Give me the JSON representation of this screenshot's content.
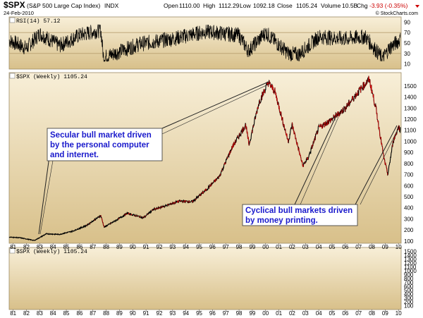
{
  "header": {
    "symbol": "$SPX",
    "description": "(S&P 500 Large Cap Index)",
    "exchange": "INDX",
    "date": "24-Feb-2010",
    "open_label": "Open",
    "open": "1110.00",
    "high_label": "High",
    "high": "1112.29",
    "low_label": "Low",
    "low": "1092.18",
    "close_label": "Close",
    "close": "1105.24",
    "volume_label": "Volume",
    "volume": "10.5B",
    "change_label": "Chg",
    "change": "-3.93 (-0.35%)",
    "credit": "© StockCharts.com"
  },
  "panels": {
    "rsi_label": "RSI(14) 57.12",
    "main_label": "$SPX (Weekly) 1105.24",
    "lower_label": "$SPX (Weekly) 1105.24"
  },
  "annotations": {
    "secular": [
      "Secular bull market driven",
      "by the personal computer",
      "and internet."
    ],
    "cyclical": [
      "Cyclical bull markets driven",
      "by money printing."
    ]
  },
  "colors": {
    "panel_top": "#f8efd8",
    "panel_bottom": "#d8c08a",
    "price_line": "#000000",
    "down_line": "#cc0000",
    "annotation_text": "#1a1acc",
    "rsi_band": "#b8a070"
  },
  "chart_data": [
    {
      "type": "line",
      "title": "RSI(14) 57.12",
      "ylim": [
        0,
        100
      ],
      "yticks": [
        10,
        30,
        50,
        70,
        90
      ],
      "reference_lines": [
        30,
        70
      ],
      "series": [
        {
          "name": "RSI(14)",
          "x": [
            1980.7,
            1982.0,
            1983.0,
            1984.5,
            1986.0,
            1987.6,
            1987.8,
            1990.5,
            1993.0,
            1995.5,
            1998.0,
            1998.7,
            2000.0,
            2001.7,
            2002.5,
            2004.0,
            2006.0,
            2007.5,
            2008.8,
            2009.3,
            2010.15
          ],
          "values": [
            55,
            40,
            68,
            45,
            65,
            75,
            22,
            48,
            58,
            72,
            65,
            35,
            70,
            30,
            28,
            62,
            58,
            62,
            20,
            40,
            57.12
          ]
        }
      ]
    },
    {
      "type": "line",
      "title": "$SPX (Weekly) 1105.24",
      "ylim": [
        80,
        1620
      ],
      "yticks": [
        100,
        200,
        300,
        400,
        500,
        600,
        700,
        800,
        900,
        1000,
        1100,
        1200,
        1300,
        1400,
        1500
      ],
      "xticks": [
        "81",
        "82",
        "83",
        "84",
        "85",
        "86",
        "87",
        "88",
        "89",
        "90",
        "91",
        "92",
        "93",
        "94",
        "95",
        "96",
        "97",
        "98",
        "99",
        "00",
        "01",
        "02",
        "03",
        "04",
        "05",
        "06",
        "07",
        "08",
        "09",
        "10"
      ],
      "series": [
        {
          "name": "$SPX",
          "x": [
            1980.7,
            1981.5,
            1982.6,
            1983.5,
            1984.5,
            1985.5,
            1986.5,
            1987.6,
            1987.85,
            1988.5,
            1989.6,
            1990.8,
            1991.5,
            1992.5,
            1993.5,
            1994.5,
            1995.5,
            1996.5,
            1997.5,
            1998.5,
            1998.75,
            1999.5,
            2000.2,
            2000.7,
            2001.7,
            2002.0,
            2002.8,
            2003.2,
            2004.0,
            2005.0,
            2006.0,
            2007.0,
            2007.8,
            2008.3,
            2008.9,
            2009.2,
            2009.6,
            2010.0,
            2010.15
          ],
          "values": [
            135,
            130,
            105,
            165,
            160,
            190,
            240,
            330,
            225,
            270,
            350,
            310,
            380,
            420,
            460,
            455,
            560,
            680,
            950,
            1150,
            970,
            1350,
            1530,
            1450,
            1000,
            1150,
            780,
            850,
            1120,
            1200,
            1300,
            1450,
            1560,
            1300,
            850,
            700,
            1000,
            1130,
            1105.24
          ]
        }
      ]
    },
    {
      "type": "line",
      "title": "$SPX (Weekly) 1105.24",
      "ylim": [
        0,
        1600
      ],
      "yticks": [
        100,
        200,
        300,
        400,
        500,
        600,
        700,
        800,
        900,
        1000,
        1100,
        1200,
        1300,
        1400,
        1500
      ],
      "xticks": [
        "81",
        "82",
        "83",
        "84",
        "85",
        "86",
        "87",
        "88",
        "89",
        "90",
        "91",
        "92",
        "93",
        "94",
        "95",
        "96",
        "97",
        "98",
        "99",
        "00",
        "01",
        "02",
        "03",
        "04",
        "05",
        "06",
        "07",
        "08",
        "09",
        "10"
      ],
      "series": []
    }
  ]
}
